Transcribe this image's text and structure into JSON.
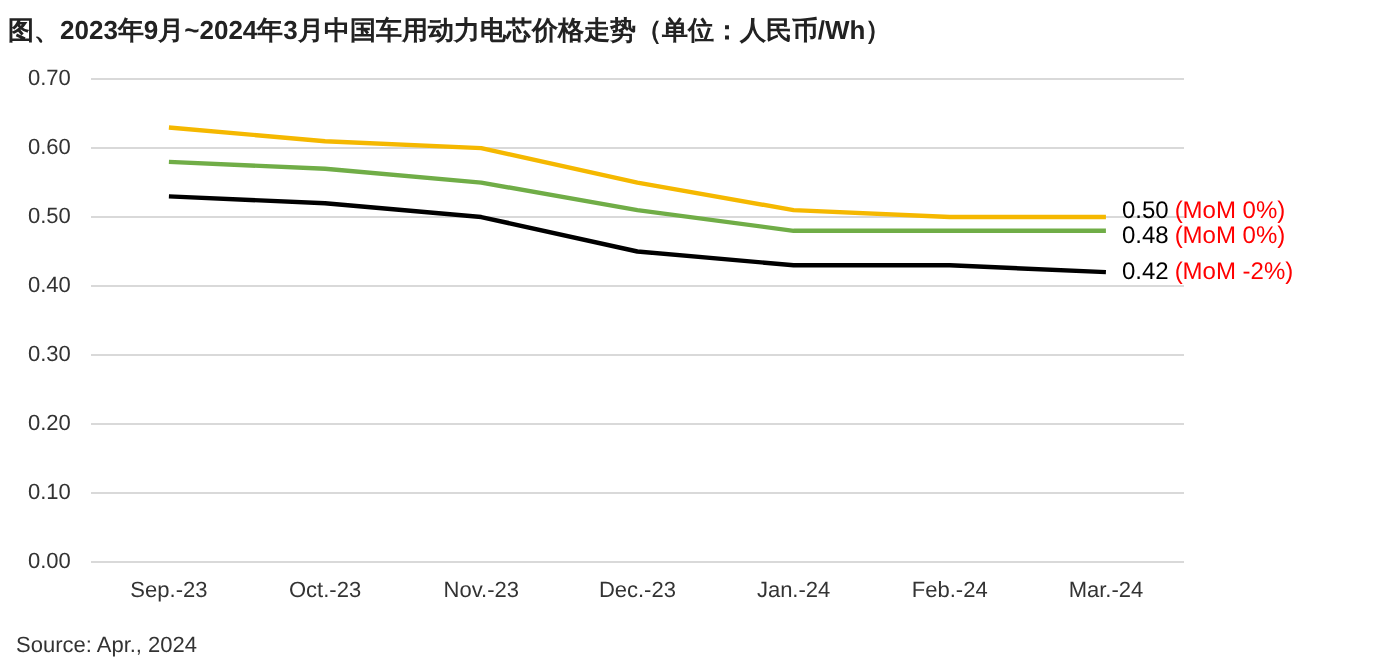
{
  "chart_data": {
    "type": "line",
    "title": "图、2023年9月~2024年3月中国车用动力电芯价格走势（单位：人民币/Wh）",
    "categories": [
      "Sep.-23",
      "Oct.-23",
      "Nov.-23",
      "Dec.-23",
      "Jan.-24",
      "Feb.-24",
      "Mar.-24"
    ],
    "series": [
      {
        "color": "#f5b800",
        "values": [
          0.63,
          0.61,
          0.6,
          0.55,
          0.51,
          0.5,
          0.5
        ],
        "value_labels": [
          null,
          null,
          null,
          null,
          null,
          null,
          "0.50"
        ]
      },
      {
        "color": "#70ad47",
        "values": [
          0.58,
          0.57,
          0.55,
          0.51,
          0.48,
          0.48,
          0.48
        ],
        "value_labels": [
          null,
          null,
          null,
          null,
          null,
          null,
          "0.48"
        ]
      },
      {
        "color": "#000000",
        "values": [
          0.53,
          0.52,
          0.5,
          0.45,
          0.43,
          0.43,
          0.42
        ],
        "value_labels": [
          null,
          null,
          null,
          null,
          null,
          null,
          "0.42"
        ]
      }
    ],
    "ylim": [
      0,
      0.7
    ],
    "yticks": [
      {
        "value": 0,
        "label": "0.00"
      },
      {
        "value": 0.1,
        "label": "0.10"
      },
      {
        "value": 0.2,
        "label": "0.20"
      },
      {
        "value": 0.3,
        "label": "0.30"
      },
      {
        "value": 0.4,
        "label": "0.40"
      },
      {
        "value": 0.5,
        "label": "0.50"
      },
      {
        "value": 0.6,
        "label": "0.60"
      },
      {
        "value": 0.7,
        "label": "0.70"
      }
    ],
    "grid": "y",
    "legend": false,
    "marker": "none",
    "line_style": "solid",
    "annotations": [
      {
        "text": "(MoM 0%)",
        "x": "Mar.-24",
        "y": 0.5
      },
      {
        "text": "(MoM 0%)",
        "x": "Mar.-24",
        "y": 0.48
      },
      {
        "text": "(MoM -2%)",
        "x": "Mar.-24",
        "y": 0.42
      },
      "Source: Apr., 2024"
    ]
  }
}
